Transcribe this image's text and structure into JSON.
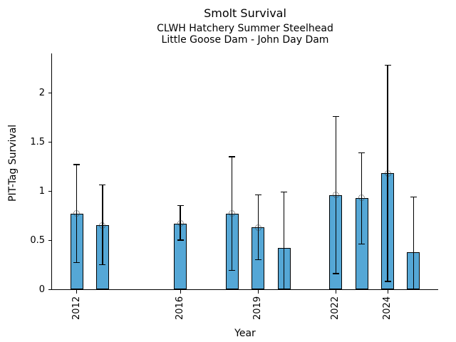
{
  "chart_data": {
    "type": "bar",
    "title": "Smolt Survival",
    "subtitle1": "CLWH Hatchery Summer Steelhead",
    "subtitle2": "Little Goose Dam - John Day Dam",
    "xlabel": "Year",
    "ylabel": "PIT-Tag Survival",
    "xlim": [
      2011.05,
      2025.95
    ],
    "ylim": [
      0,
      2.4
    ],
    "grid": false,
    "legend": "none",
    "xtick_labels": [
      "2012",
      "2016",
      "2019",
      "2022",
      "2024"
    ],
    "xtick_values": [
      2012,
      2016,
      2019,
      2022,
      2024
    ],
    "ytick_labels": [
      "0",
      "0.5",
      "1",
      "1.5",
      "2"
    ],
    "ytick_values": [
      0,
      0.5,
      1,
      1.5,
      2
    ],
    "bar_width_years": 0.5,
    "colors": {
      "bar_fill": "#55A7D6",
      "bar_edge": "#000000",
      "error_bar": "#000000",
      "marker_edge": "#333333",
      "axis": "#000000",
      "text": "#000000",
      "background": "#FFFFFF"
    },
    "series": [
      {
        "name": "PIT-Tag Survival",
        "points": [
          {
            "year": 2012,
            "value": 0.77,
            "ci_low": 0.27,
            "ci_high": 1.27,
            "marker": true
          },
          {
            "year": 2013,
            "value": 0.65,
            "ci_low": 0.25,
            "ci_high": 1.06,
            "marker": true
          },
          {
            "year": 2016,
            "value": 0.67,
            "ci_low": 0.5,
            "ci_high": 0.85,
            "marker": true
          },
          {
            "year": 2018,
            "value": 0.77,
            "ci_low": 0.19,
            "ci_high": 1.35,
            "marker": true
          },
          {
            "year": 2019,
            "value": 0.63,
            "ci_low": 0.3,
            "ci_high": 0.96,
            "marker": true
          },
          {
            "year": 2020,
            "value": 0.42,
            "ci_low": 0.0,
            "ci_high": 0.99,
            "marker": false
          },
          {
            "year": 2022,
            "value": 0.96,
            "ci_low": 0.16,
            "ci_high": 1.76,
            "marker": true
          },
          {
            "year": 2023,
            "value": 0.93,
            "ci_low": 0.46,
            "ci_high": 1.39,
            "marker": true
          },
          {
            "year": 2024,
            "value": 1.18,
            "ci_low": 0.08,
            "ci_high": 2.28,
            "marker": true
          },
          {
            "year": 2025,
            "value": 0.38,
            "ci_low": 0.0,
            "ci_high": 0.94,
            "marker": false
          }
        ]
      }
    ]
  }
}
